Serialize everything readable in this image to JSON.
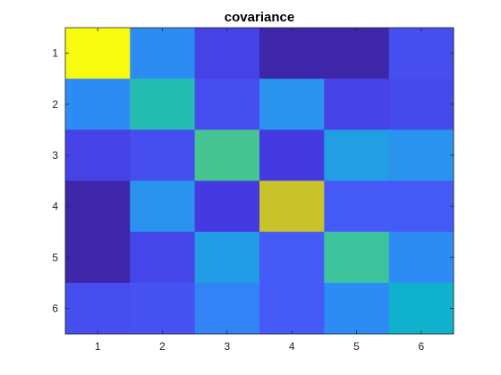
{
  "chart_data": {
    "type": "heatmap",
    "title": "covariance",
    "xlabel": "",
    "ylabel": "",
    "x_ticks": [
      "1",
      "2",
      "3",
      "4",
      "5",
      "6"
    ],
    "y_ticks": [
      "1",
      "2",
      "3",
      "4",
      "5",
      "6"
    ],
    "colormap": "parula",
    "value_range": [
      0,
      1
    ],
    "grid": false,
    "colorbar": false,
    "values": [
      [
        1.0,
        0.3,
        0.12,
        0.0,
        0.0,
        0.15
      ],
      [
        0.3,
        0.55,
        0.15,
        0.33,
        0.12,
        0.14
      ],
      [
        0.12,
        0.15,
        0.62,
        0.1,
        0.38,
        0.33
      ],
      [
        0.0,
        0.33,
        0.1,
        0.85,
        0.18,
        0.18
      ],
      [
        0.0,
        0.13,
        0.37,
        0.18,
        0.6,
        0.3
      ],
      [
        0.15,
        0.16,
        0.28,
        0.18,
        0.3,
        0.48
      ]
    ]
  }
}
